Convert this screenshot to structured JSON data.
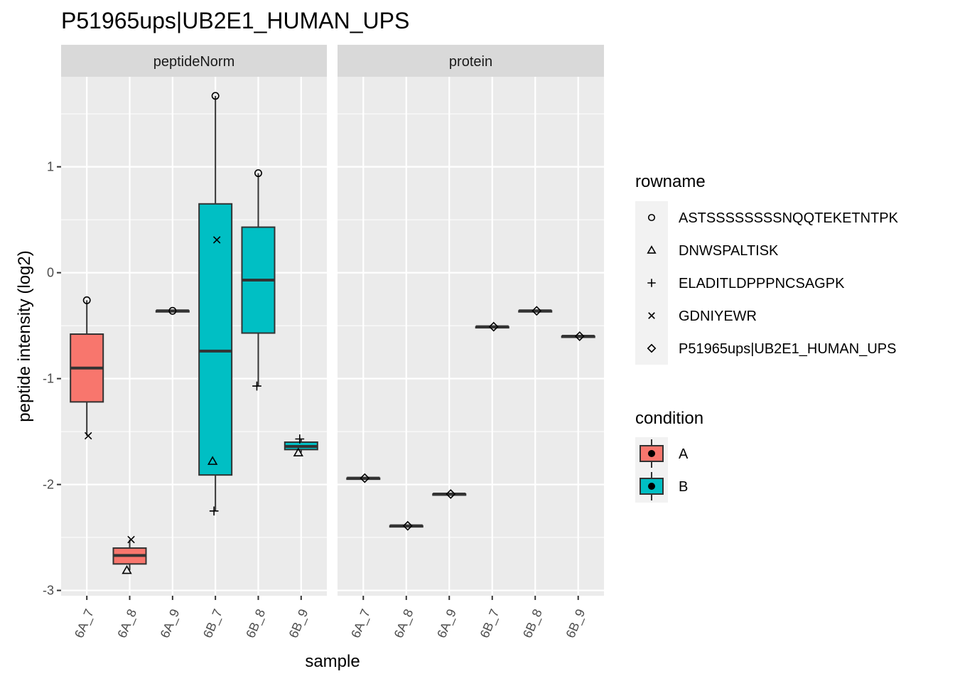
{
  "chart_data": {
    "type": "boxplot",
    "title": "P51965ups|UB2E1_HUMAN_UPS",
    "xlabel": "sample",
    "ylabel": "peptide intensity (log2)",
    "ylim": [
      -3.05,
      1.85
    ],
    "y_ticks": [
      1,
      0,
      -1,
      -2,
      -3
    ],
    "y_tick_labels": [
      "1",
      "0",
      "-1",
      "-2",
      "-3"
    ],
    "grid": true,
    "legend_position": "right",
    "facets": [
      "peptideNorm",
      "protein"
    ],
    "samples": [
      "6A_7",
      "6A_8",
      "6A_9",
      "6B_7",
      "6B_8",
      "6B_9"
    ],
    "colors": {
      "A": "#F8766D",
      "B": "#00BFC4",
      "panel_bg": "#EBEBEB",
      "strip_bg": "#D9D9D9",
      "grid": "#FFFFFF",
      "box_line": "#333333"
    },
    "legends": {
      "rowname": {
        "title": "rowname",
        "items": [
          {
            "label": "ASTSSSSSSSSNQQTEKETNTPK",
            "shape": "circle"
          },
          {
            "label": "DNWSPALTISK",
            "shape": "triangle"
          },
          {
            "label": "ELADITLDPPPNCSAGPK",
            "shape": "plus"
          },
          {
            "label": "GDNIYEWR",
            "shape": "cross"
          },
          {
            "label": "P51965ups|UB2E1_HUMAN_UPS",
            "shape": "diamond"
          }
        ]
      },
      "condition": {
        "title": "condition",
        "items": [
          {
            "label": "A",
            "color": "#F8766D"
          },
          {
            "label": "B",
            "color": "#00BFC4"
          }
        ]
      }
    },
    "panels": [
      {
        "facet": "peptideNorm",
        "boxes": [
          {
            "sample": "6A_7",
            "condition": "A",
            "min": -1.54,
            "q1": -1.22,
            "median": -0.9,
            "q3": -0.58,
            "max": -0.26
          },
          {
            "sample": "6A_8",
            "condition": "A",
            "min": -2.81,
            "q1": -2.75,
            "median": -2.67,
            "q3": -2.6,
            "max": -2.52
          },
          {
            "sample": "6A_9",
            "condition": "A",
            "min": -0.36,
            "q1": -0.36,
            "median": -0.36,
            "q3": -0.36,
            "max": -0.36
          },
          {
            "sample": "6B_7",
            "condition": "B",
            "min": -2.25,
            "q1": -1.91,
            "median": -0.74,
            "q3": 0.65,
            "max": 1.67
          },
          {
            "sample": "6B_8",
            "condition": "B",
            "min": -1.07,
            "q1": -0.57,
            "median": -0.07,
            "q3": 0.43,
            "max": 0.94
          },
          {
            "sample": "6B_9",
            "condition": "B",
            "min": -1.7,
            "q1": -1.67,
            "median": -1.64,
            "q3": -1.6,
            "max": -1.57
          }
        ],
        "points": [
          {
            "sample": "6A_7",
            "shape": "circle",
            "value": -0.26
          },
          {
            "sample": "6A_7",
            "shape": "cross",
            "value": -1.54
          },
          {
            "sample": "6A_8",
            "shape": "cross",
            "value": -2.52
          },
          {
            "sample": "6A_8",
            "shape": "triangle",
            "value": -2.81
          },
          {
            "sample": "6A_9",
            "shape": "circle",
            "value": -0.36
          },
          {
            "sample": "6B_7",
            "shape": "circle",
            "value": 1.67
          },
          {
            "sample": "6B_7",
            "shape": "cross",
            "value": 0.31
          },
          {
            "sample": "6B_7",
            "shape": "triangle",
            "value": -1.78
          },
          {
            "sample": "6B_7",
            "shape": "plus",
            "value": -2.25
          },
          {
            "sample": "6B_8",
            "shape": "circle",
            "value": 0.94
          },
          {
            "sample": "6B_8",
            "shape": "plus",
            "value": -1.07
          },
          {
            "sample": "6B_9",
            "shape": "plus",
            "value": -1.57
          },
          {
            "sample": "6B_9",
            "shape": "triangle",
            "value": -1.7
          }
        ]
      },
      {
        "facet": "protein",
        "boxes": [
          {
            "sample": "6A_7",
            "condition": "A",
            "min": -1.94,
            "q1": -1.94,
            "median": -1.94,
            "q3": -1.94,
            "max": -1.94
          },
          {
            "sample": "6A_8",
            "condition": "A",
            "min": -2.39,
            "q1": -2.39,
            "median": -2.39,
            "q3": -2.39,
            "max": -2.39
          },
          {
            "sample": "6A_9",
            "condition": "A",
            "min": -2.09,
            "q1": -2.09,
            "median": -2.09,
            "q3": -2.09,
            "max": -2.09
          },
          {
            "sample": "6B_7",
            "condition": "B",
            "min": -0.51,
            "q1": -0.51,
            "median": -0.51,
            "q3": -0.51,
            "max": -0.51
          },
          {
            "sample": "6B_8",
            "condition": "B",
            "min": -0.36,
            "q1": -0.36,
            "median": -0.36,
            "q3": -0.36,
            "max": -0.36
          },
          {
            "sample": "6B_9",
            "condition": "B",
            "min": -0.6,
            "q1": -0.6,
            "median": -0.6,
            "q3": -0.6,
            "max": -0.6
          }
        ],
        "points": [
          {
            "sample": "6A_7",
            "shape": "diamond",
            "value": -1.94
          },
          {
            "sample": "6A_8",
            "shape": "diamond",
            "value": -2.39
          },
          {
            "sample": "6A_9",
            "shape": "diamond",
            "value": -2.09
          },
          {
            "sample": "6B_7",
            "shape": "diamond",
            "value": -0.51
          },
          {
            "sample": "6B_8",
            "shape": "diamond",
            "value": -0.36
          },
          {
            "sample": "6B_9",
            "shape": "diamond",
            "value": -0.6
          }
        ]
      }
    ]
  }
}
